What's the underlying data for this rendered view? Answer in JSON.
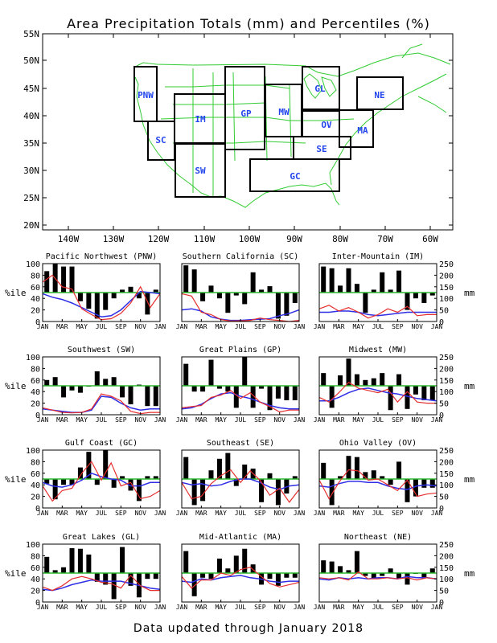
{
  "title": "Area Precipitation Totals (mm) and Percentiles (%)",
  "footer": "Data updated through January 2018",
  "colors": {
    "percentile_bar": "#000000",
    "normal_line": "#2e2ee6",
    "actual_line": "#e62e2e",
    "median_line": "#2eb82e",
    "map_coast": "#33cc33",
    "region_label": "#2244ee"
  },
  "map": {
    "lat_labels": [
      "55N",
      "50N",
      "45N",
      "40N",
      "35N",
      "30N",
      "25N",
      "20N"
    ],
    "lon_labels": [
      "140W",
      "130W",
      "120W",
      "110W",
      "100W",
      "90W",
      "80W",
      "70W",
      "60W"
    ],
    "region_labels": [
      "PNW",
      "SC",
      "IM",
      "SW",
      "GP",
      "MW",
      "GL",
      "OV",
      "SE",
      "GC",
      "MA",
      "NE"
    ]
  },
  "chart_data": [
    {
      "type": "bar",
      "title": "Pacific Northwest (PNW)",
      "xticks": [
        "JAN",
        "MAR",
        "MAY",
        "JUL",
        "SEP",
        "NOV",
        "JAN"
      ],
      "ylim": [
        0,
        100
      ],
      "ylabel": "%ile",
      "y2lim": [
        0,
        250
      ],
      "y2label": "mm",
      "percentiles": [
        87,
        100,
        95,
        95,
        35,
        22,
        5,
        20,
        40,
        55,
        60,
        40,
        12,
        55
      ],
      "normal_mm": [
        120,
        105,
        95,
        80,
        60,
        40,
        20,
        25,
        50,
        90,
        130,
        125,
        120
      ],
      "actual_mm": [
        170,
        200,
        150,
        140,
        55,
        30,
        8,
        12,
        35,
        80,
        150,
        60,
        120
      ]
    },
    {
      "type": "bar",
      "title": "Southern California (SC)",
      "xticks": [
        "JAN",
        "MAR",
        "MAY",
        "JUL",
        "SEP",
        "NOV",
        "JAN"
      ],
      "ylim": [
        0,
        100
      ],
      "ylabel": "%ile",
      "y2lim": [
        0,
        250
      ],
      "y2label": "mm",
      "percentiles": [
        97,
        90,
        35,
        62,
        40,
        15,
        45,
        30,
        85,
        55,
        61,
        5,
        10,
        32
      ],
      "normal_mm": [
        50,
        55,
        45,
        20,
        10,
        5,
        5,
        8,
        10,
        12,
        25,
        35,
        50
      ],
      "actual_mm": [
        120,
        110,
        40,
        30,
        8,
        2,
        3,
        5,
        15,
        8,
        5,
        0,
        5
      ]
    },
    {
      "type": "bar",
      "title": "Inter-Mountain (IM)",
      "xticks": [
        "JAN",
        "MAR",
        "MAY",
        "JUL",
        "SEP",
        "NOV",
        "JAN"
      ],
      "ylim": [
        0,
        100
      ],
      "ylabel": "%ile",
      "y2lim": [
        0,
        250
      ],
      "y2label": "mm",
      "percentiles": [
        95,
        92,
        62,
        92,
        65,
        15,
        55,
        85,
        55,
        88,
        20,
        40,
        32,
        45
      ],
      "normal_mm": [
        40,
        40,
        45,
        45,
        40,
        30,
        25,
        30,
        35,
        40,
        40,
        40,
        40
      ],
      "actual_mm": [
        55,
        70,
        45,
        60,
        40,
        15,
        30,
        55,
        40,
        65,
        25,
        30,
        30
      ]
    },
    {
      "type": "bar",
      "title": "Southwest (SW)",
      "xticks": [
        "JAN",
        "MAR",
        "MAY",
        "JUL",
        "SEP",
        "NOV",
        "JAN"
      ],
      "ylim": [
        0,
        100
      ],
      "ylabel": "%ile",
      "y2lim": [
        0,
        250
      ],
      "y2label": "mm",
      "percentiles": [
        60,
        65,
        30,
        42,
        38,
        50,
        75,
        62,
        65,
        30,
        18,
        52,
        15,
        15
      ],
      "normal_mm": [
        25,
        20,
        15,
        10,
        10,
        20,
        80,
        75,
        50,
        30,
        20,
        25,
        25
      ],
      "actual_mm": [
        30,
        20,
        10,
        8,
        10,
        25,
        90,
        80,
        60,
        15,
        5,
        10,
        10
      ]
    },
    {
      "type": "bar",
      "title": "Great Plains (GP)",
      "xticks": [
        "JAN",
        "MAR",
        "MAY",
        "JUL",
        "SEP",
        "NOV",
        "JAN"
      ],
      "ylim": [
        0,
        100
      ],
      "ylabel": "%ile",
      "y2lim": [
        0,
        250
      ],
      "y2label": "mm",
      "percentiles": [
        88,
        40,
        40,
        95,
        45,
        40,
        12,
        100,
        12,
        45,
        8,
        28,
        25,
        25
      ],
      "normal_mm": [
        25,
        30,
        45,
        70,
        90,
        95,
        80,
        70,
        55,
        40,
        30,
        25,
        25
      ],
      "actual_mm": [
        30,
        35,
        40,
        75,
        85,
        105,
        70,
        95,
        55,
        35,
        12,
        20,
        20
      ]
    },
    {
      "type": "bar",
      "title": "Midwest (MW)",
      "xticks": [
        "JAN",
        "MAR",
        "MAY",
        "JUL",
        "SEP",
        "NOV",
        "JAN"
      ],
      "ylim": [
        0,
        100
      ],
      "ylabel": "%ile",
      "y2lim": [
        0,
        250
      ],
      "y2label": "mm",
      "percentiles": [
        72,
        12,
        68,
        97,
        70,
        60,
        63,
        72,
        8,
        70,
        10,
        35,
        25,
        25
      ],
      "normal_mm": [
        60,
        60,
        75,
        95,
        110,
        115,
        105,
        95,
        90,
        80,
        70,
        65,
        60
      ],
      "actual_mm": [
        75,
        55,
        95,
        140,
        115,
        105,
        95,
        110,
        55,
        100,
        55,
        50,
        50
      ]
    },
    {
      "type": "bar",
      "title": "Gulf Coast (GC)",
      "xticks": [
        "JAN",
        "MAR",
        "MAY",
        "JUL",
        "SEP",
        "NOV",
        "JAN"
      ],
      "ylim": [
        0,
        100
      ],
      "ylabel": "%ile",
      "y2lim": [
        0,
        250
      ],
      "y2label": "mm",
      "percentiles": [
        42,
        15,
        40,
        40,
        70,
        97,
        40,
        100,
        35,
        55,
        30,
        12,
        55,
        55
      ],
      "normal_mm": [
        110,
        95,
        90,
        100,
        120,
        150,
        135,
        125,
        120,
        95,
        95,
        110,
        110
      ],
      "actual_mm": [
        95,
        30,
        75,
        85,
        150,
        200,
        120,
        195,
        95,
        110,
        40,
        50,
        75
      ]
    },
    {
      "type": "bar",
      "title": "Southeast (SE)",
      "xticks": [
        "JAN",
        "MAR",
        "MAY",
        "JUL",
        "SEP",
        "NOV",
        "JAN"
      ],
      "ylim": [
        0,
        100
      ],
      "ylabel": "%ile",
      "y2lim": [
        0,
        250
      ],
      "y2label": "mm",
      "percentiles": [
        88,
        5,
        12,
        65,
        85,
        95,
        38,
        75,
        68,
        10,
        60,
        5,
        25,
        55
      ],
      "normal_mm": [
        110,
        100,
        105,
        95,
        100,
        115,
        125,
        125,
        110,
        90,
        80,
        95,
        100
      ],
      "actual_mm": [
        110,
        40,
        50,
        105,
        140,
        165,
        110,
        160,
        120,
        55,
        85,
        25,
        80
      ]
    },
    {
      "type": "bar",
      "title": "Ohio Valley (OV)",
      "xticks": [
        "JAN",
        "MAR",
        "MAY",
        "JUL",
        "SEP",
        "NOV",
        "JAN"
      ],
      "ylim": [
        0,
        100
      ],
      "ylabel": "%ile",
      "y2lim": [
        0,
        250
      ],
      "y2label": "mm",
      "percentiles": [
        78,
        5,
        55,
        90,
        88,
        62,
        65,
        55,
        40,
        80,
        10,
        20,
        35,
        35
      ],
      "normal_mm": [
        95,
        90,
        105,
        115,
        115,
        110,
        110,
        95,
        85,
        80,
        95,
        100,
        95
      ],
      "actual_mm": [
        120,
        40,
        110,
        165,
        160,
        120,
        125,
        100,
        75,
        120,
        50,
        60,
        65
      ]
    },
    {
      "type": "bar",
      "title": "Great Lakes (GL)",
      "xticks": [
        "JAN",
        "MAR",
        "MAY",
        "JUL",
        "SEP",
        "NOV",
        "JAN"
      ],
      "ylim": [
        0,
        100
      ],
      "ylabel": "%ile",
      "y2lim": [
        0,
        250
      ],
      "y2label": "mm",
      "percentiles": [
        78,
        55,
        60,
        93,
        92,
        82,
        35,
        30,
        5,
        95,
        28,
        8,
        40,
        40
      ],
      "normal_mm": [
        55,
        50,
        60,
        75,
        85,
        95,
        90,
        90,
        90,
        80,
        70,
        60,
        55
      ],
      "actual_mm": [
        65,
        50,
        70,
        100,
        110,
        100,
        85,
        80,
        60,
        115,
        70,
        50,
        50
      ]
    },
    {
      "type": "bar",
      "title": "Mid-Atlantic (MA)",
      "xticks": [
        "JAN",
        "MAR",
        "MAY",
        "JUL",
        "SEP",
        "NOV",
        "JAN"
      ],
      "ylim": [
        0,
        100
      ],
      "ylabel": "%ile",
      "y2lim": [
        0,
        250
      ],
      "y2label": "mm",
      "percentiles": [
        88,
        10,
        42,
        40,
        75,
        58,
        80,
        92,
        65,
        30,
        40,
        28,
        42,
        42
      ],
      "normal_mm": [
        90,
        85,
        100,
        95,
        105,
        110,
        115,
        105,
        100,
        90,
        85,
        90,
        90
      ],
      "actual_mm": [
        110,
        60,
        95,
        95,
        125,
        115,
        140,
        150,
        115,
        80,
        65,
        75,
        85
      ]
    },
    {
      "type": "bar",
      "title": "Northeast (NE)",
      "xticks": [
        "JAN",
        "MAR",
        "MAY",
        "JUL",
        "SEP",
        "NOV",
        "JAN"
      ],
      "ylim": [
        0,
        100
      ],
      "ylabel": "%ile",
      "y2lim": [
        0,
        250
      ],
      "y2label": "mm",
      "percentiles": [
        72,
        70,
        62,
        55,
        88,
        45,
        40,
        45,
        58,
        40,
        30,
        50,
        42,
        58
      ],
      "normal_mm": [
        100,
        95,
        105,
        100,
        105,
        100,
        105,
        105,
        100,
        110,
        105,
        105,
        100
      ],
      "actual_mm": [
        105,
        100,
        105,
        95,
        130,
        100,
        100,
        105,
        100,
        105,
        95,
        105,
        100
      ]
    }
  ]
}
